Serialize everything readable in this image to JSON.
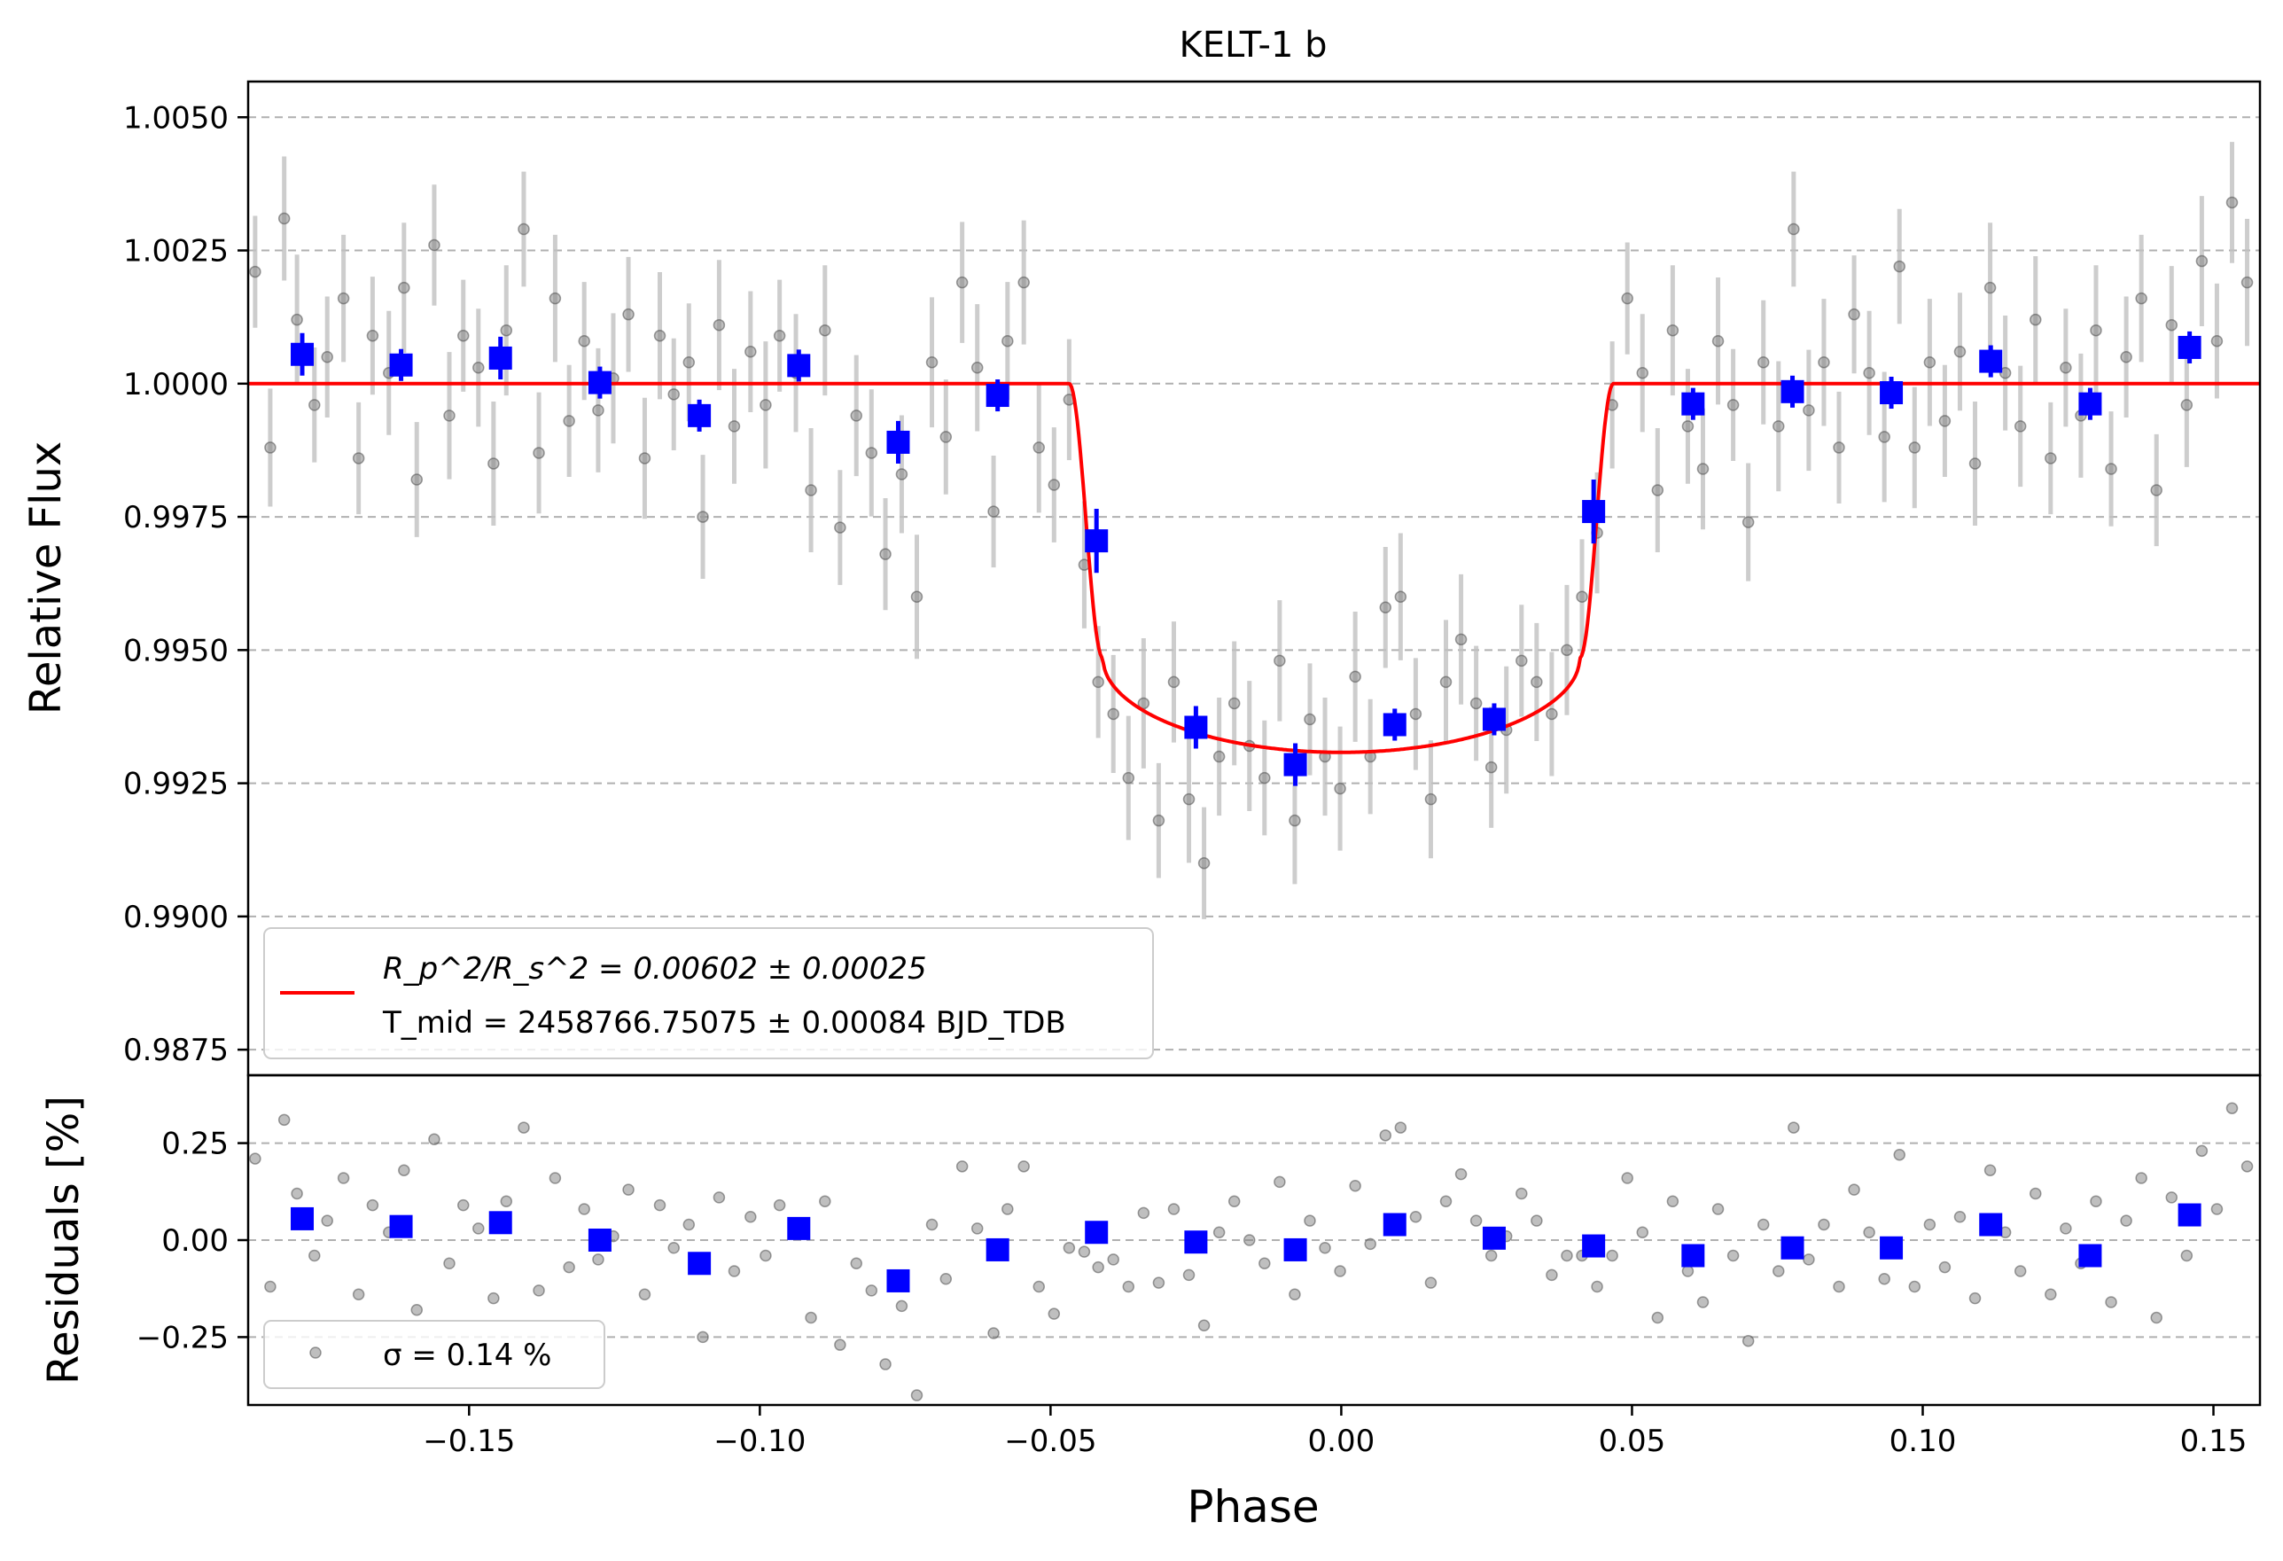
{
  "chart_data": [
    {
      "type": "scatter",
      "panel": "flux",
      "title": "KELT-1 b",
      "xlabel": "",
      "ylabel": "Relative Flux",
      "xlim": [
        -0.188,
        0.158
      ],
      "ylim": [
        0.98702,
        1.00567
      ],
      "grid": "horizontal dashed",
      "yticks": [
        1.005,
        1.0025,
        1.0,
        0.9975,
        0.995,
        0.9925,
        0.99,
        0.9875
      ],
      "ytick_labels": [
        "1.0050",
        "1.0025",
        "1.0000",
        "0.9975",
        "0.9950",
        "0.9925",
        "0.9900",
        "0.9875"
      ],
      "legend_position": "lower-left",
      "legend": {
        "model_line": "R_p^2/R_s^2 = 0.00602 ± 0.00025",
        "tmid_line": "T_mid = 2458766.75075 ± 0.00084 BJD_TDB"
      },
      "model": {
        "color": "#ff0000",
        "transit_center": 0.0,
        "t1": -0.0468,
        "t2": -0.041,
        "baseline": 1.0,
        "depth_center": 0.99308,
        "depth_at_contact": 0.99485
      },
      "binned_color": "#0000ff",
      "raw_color": "#808080",
      "binned": {
        "x": [
          -0.1787,
          -0.1617,
          -0.1446,
          -0.1275,
          -0.1104,
          -0.0933,
          -0.0762,
          -0.0591,
          -0.0421,
          -0.025,
          -0.0079,
          0.0092,
          0.0263,
          0.0434,
          0.0605,
          0.0776,
          0.0946,
          0.1117,
          0.1288,
          0.1459
        ],
        "y": [
          1.00055,
          1.00035,
          1.00048,
          1.00002,
          0.9994,
          1.00034,
          0.9989,
          0.99978,
          0.99705,
          0.99355,
          0.99285,
          0.9936,
          0.9937,
          0.9976,
          0.99962,
          0.99985,
          0.99983,
          1.00042,
          0.99962,
          1.00068
        ],
        "err": [
          0.0004,
          0.0003,
          0.0004,
          0.0003,
          0.0003,
          0.0003,
          0.0004,
          0.0003,
          0.0006,
          0.0004,
          0.0004,
          0.0003,
          0.0003,
          0.0006,
          0.0003,
          0.0003,
          0.0003,
          0.0003,
          0.0003,
          0.0003
        ]
      },
      "raw": {
        "x": [
          -0.1868,
          -0.1842,
          -0.1818,
          -0.1796,
          -0.1766,
          -0.1744,
          -0.1716,
          -0.169,
          -0.1666,
          -0.1638,
          -0.1612,
          -0.159,
          -0.156,
          -0.1534,
          -0.151,
          -0.1484,
          -0.1458,
          -0.1436,
          -0.1406,
          -0.138,
          -0.1352,
          -0.1328,
          -0.1302,
          -0.1278,
          -0.1252,
          -0.1226,
          -0.1198,
          -0.1172,
          -0.1148,
          -0.1122,
          -0.1098,
          -0.107,
          -0.1044,
          -0.1016,
          -0.099,
          -0.0966,
          -0.0938,
          -0.0912,
          -0.0888,
          -0.0862,
          -0.0834,
          -0.0808,
          -0.0784,
          -0.0756,
          -0.073,
          -0.0704,
          -0.068,
          -0.0652,
          -0.0626,
          -0.0598,
          -0.0574,
          -0.0546,
          -0.052,
          -0.0494,
          -0.0468,
          -0.0442,
          -0.0418,
          -0.0392,
          -0.0366,
          -0.034,
          -0.0314,
          -0.0288,
          -0.0262,
          -0.0236,
          -0.021,
          -0.0184,
          -0.0158,
          -0.0132,
          -0.0106,
          -0.008,
          -0.0054,
          -0.0028,
          -0.0002,
          0.0024,
          0.005,
          0.0076,
          0.0102,
          0.0128,
          0.0154,
          0.018,
          0.0206,
          0.0232,
          0.0258,
          0.0284,
          0.031,
          0.0336,
          0.0362,
          0.0388,
          0.0414,
          0.044,
          0.0466,
          0.0492,
          0.0518,
          0.0544,
          0.057,
          0.0596,
          0.0622,
          0.0648,
          0.0674,
          0.07,
          0.0726,
          0.0752,
          0.0778,
          0.0804,
          0.083,
          0.0856,
          0.0882,
          0.0908,
          0.0934,
          0.096,
          0.0986,
          0.1012,
          0.1038,
          0.1064,
          0.109,
          0.1116,
          0.1142,
          0.1168,
          0.1194,
          0.122,
          0.1246,
          0.1272,
          0.1298,
          0.1324,
          0.135,
          0.1376,
          0.1402,
          0.1428,
          0.1454,
          0.148,
          0.1506,
          0.1532,
          0.1558
        ],
        "y": [
          1.0021,
          0.9988,
          1.0031,
          1.0012,
          0.9996,
          1.0005,
          1.0016,
          0.9986,
          1.0009,
          1.0002,
          1.0018,
          0.9982,
          1.0026,
          0.9994,
          1.0009,
          1.0003,
          0.9985,
          1.001,
          1.0029,
          0.9987,
          1.0016,
          0.9993,
          1.0008,
          0.9995,
          1.0001,
          1.0013,
          0.9986,
          1.0009,
          0.9998,
          1.0004,
          0.9975,
          1.0011,
          0.9992,
          1.0006,
          0.9996,
          1.0009,
          1.0002,
          0.998,
          1.001,
          0.9973,
          0.9994,
          0.9987,
          0.9968,
          0.9983,
          0.996,
          1.0004,
          0.999,
          1.0019,
          1.0003,
          0.9976,
          1.0008,
          1.0019,
          0.9988,
          0.9981,
          0.9997,
          0.9966,
          0.9944,
          0.9938,
          0.9926,
          0.994,
          0.9918,
          0.9944,
          0.9922,
          0.991,
          0.993,
          0.994,
          0.9932,
          0.9926,
          0.9948,
          0.9918,
          0.9937,
          0.993,
          0.9924,
          0.9945,
          0.993,
          0.9958,
          0.996,
          0.9938,
          0.9922,
          0.9944,
          0.9952,
          0.994,
          0.9928,
          0.9935,
          0.9948,
          0.9944,
          0.9938,
          0.995,
          0.996,
          0.9972,
          0.9996,
          1.0016,
          1.0002,
          0.998,
          1.001,
          0.9992,
          0.9984,
          1.0008,
          0.9996,
          0.9974,
          1.0004,
          0.9992,
          1.0029,
          0.9995,
          1.0004,
          0.9988,
          1.0013,
          1.0002,
          0.999,
          1.0022,
          0.9988,
          1.0004,
          0.9993,
          1.0006,
          0.9985,
          1.0018,
          1.0002,
          0.9992,
          1.0012,
          0.9986,
          1.0003,
          0.9994,
          1.001,
          0.9984,
          1.0005,
          1.0016,
          0.998,
          1.0011,
          0.9996,
          1.0023,
          1.0008,
          1.0034,
          1.0019
        ]
      }
    },
    {
      "type": "scatter",
      "panel": "residuals",
      "xlabel": "Phase",
      "ylabel": "Residuals [%]",
      "xlim": [
        -0.188,
        0.158
      ],
      "ylim": [
        -0.425,
        0.425
      ],
      "grid": "horizontal dashed",
      "yticks": [
        0.25,
        0.0,
        -0.25
      ],
      "ytick_labels": [
        "0.25",
        "0.00",
        "−0.25"
      ],
      "xticks": [
        -0.15,
        -0.1,
        -0.05,
        0.0,
        0.05,
        0.1,
        0.15
      ],
      "xtick_labels": [
        "−0.15",
        "−0.10",
        "−0.05",
        "0.00",
        "0.05",
        "0.10",
        "0.15"
      ],
      "legend_position": "lower-left",
      "legend": {
        "sigma_line": "σ = 0.14 %"
      },
      "binned": {
        "x": [
          -0.1787,
          -0.1617,
          -0.1446,
          -0.1275,
          -0.1104,
          -0.0933,
          -0.0762,
          -0.0591,
          -0.0421,
          -0.025,
          -0.0079,
          0.0092,
          0.0263,
          0.0434,
          0.0605,
          0.0776,
          0.0946,
          0.1117,
          0.1288,
          0.1459
        ],
        "y": [
          0.055,
          0.035,
          0.045,
          0.0,
          -0.06,
          0.03,
          -0.105,
          -0.025,
          0.02,
          -0.005,
          -0.025,
          0.04,
          0.005,
          -0.015,
          -0.04,
          -0.02,
          -0.02,
          0.04,
          -0.04,
          0.065
        ]
      },
      "raw": {
        "x": [
          -0.1868,
          -0.1842,
          -0.1818,
          -0.1796,
          -0.1766,
          -0.1744,
          -0.1716,
          -0.169,
          -0.1666,
          -0.1638,
          -0.1612,
          -0.159,
          -0.156,
          -0.1534,
          -0.151,
          -0.1484,
          -0.1458,
          -0.1436,
          -0.1406,
          -0.138,
          -0.1352,
          -0.1328,
          -0.1302,
          -0.1278,
          -0.1252,
          -0.1226,
          -0.1198,
          -0.1172,
          -0.1148,
          -0.1122,
          -0.1098,
          -0.107,
          -0.1044,
          -0.1016,
          -0.099,
          -0.0966,
          -0.0938,
          -0.0912,
          -0.0888,
          -0.0862,
          -0.0834,
          -0.0808,
          -0.0784,
          -0.0756,
          -0.073,
          -0.0704,
          -0.068,
          -0.0652,
          -0.0626,
          -0.0598,
          -0.0574,
          -0.0546,
          -0.052,
          -0.0494,
          -0.0468,
          -0.0442,
          -0.0418,
          -0.0392,
          -0.0366,
          -0.034,
          -0.0314,
          -0.0288,
          -0.0262,
          -0.0236,
          -0.021,
          -0.0184,
          -0.0158,
          -0.0132,
          -0.0106,
          -0.008,
          -0.0054,
          -0.0028,
          -0.0002,
          0.0024,
          0.005,
          0.0076,
          0.0102,
          0.0128,
          0.0154,
          0.018,
          0.0206,
          0.0232,
          0.0258,
          0.0284,
          0.031,
          0.0336,
          0.0362,
          0.0388,
          0.0414,
          0.044,
          0.0466,
          0.0492,
          0.0518,
          0.0544,
          0.057,
          0.0596,
          0.0622,
          0.0648,
          0.0674,
          0.07,
          0.0726,
          0.0752,
          0.0778,
          0.0804,
          0.083,
          0.0856,
          0.0882,
          0.0908,
          0.0934,
          0.096,
          0.0986,
          0.1012,
          0.1038,
          0.1064,
          0.109,
          0.1116,
          0.1142,
          0.1168,
          0.1194,
          0.122,
          0.1246,
          0.1272,
          0.1298,
          0.1324,
          0.135,
          0.1376,
          0.1402,
          0.1428,
          0.1454,
          0.148,
          0.1506,
          0.1532,
          0.1558
        ],
        "y": [
          0.21,
          -0.12,
          0.31,
          0.12,
          -0.04,
          0.05,
          0.16,
          -0.14,
          0.09,
          0.02,
          0.18,
          -0.18,
          0.26,
          -0.06,
          0.09,
          0.03,
          -0.15,
          0.1,
          0.29,
          -0.13,
          0.16,
          -0.07,
          0.08,
          -0.05,
          0.01,
          0.13,
          -0.14,
          0.09,
          -0.02,
          0.04,
          -0.25,
          0.11,
          -0.08,
          0.06,
          -0.04,
          0.09,
          0.02,
          -0.2,
          0.1,
          -0.27,
          -0.06,
          -0.13,
          -0.32,
          -0.17,
          -0.4,
          0.04,
          -0.1,
          0.19,
          0.03,
          -0.24,
          0.08,
          0.19,
          -0.12,
          -0.19,
          -0.02,
          -0.03,
          -0.07,
          -0.05,
          -0.12,
          0.07,
          -0.11,
          0.08,
          -0.09,
          -0.22,
          0.02,
          0.1,
          0.0,
          -0.06,
          0.15,
          -0.14,
          0.05,
          -0.02,
          -0.08,
          0.14,
          -0.01,
          0.27,
          0.29,
          0.06,
          -0.11,
          0.1,
          0.17,
          0.05,
          -0.04,
          0.01,
          0.12,
          0.05,
          -0.09,
          -0.04,
          -0.04,
          -0.12,
          -0.04,
          0.16,
          0.02,
          -0.2,
          0.1,
          -0.08,
          -0.16,
          0.08,
          -0.04,
          -0.26,
          0.04,
          -0.08,
          0.29,
          -0.05,
          0.04,
          -0.12,
          0.13,
          0.02,
          -0.1,
          0.22,
          -0.12,
          0.04,
          -0.07,
          0.06,
          -0.15,
          0.18,
          0.02,
          -0.08,
          0.12,
          -0.14,
          0.03,
          -0.06,
          0.1,
          -0.16,
          0.05,
          0.16,
          -0.2,
          0.11,
          -0.04,
          0.23,
          0.08,
          0.34,
          0.19
        ]
      }
    }
  ]
}
